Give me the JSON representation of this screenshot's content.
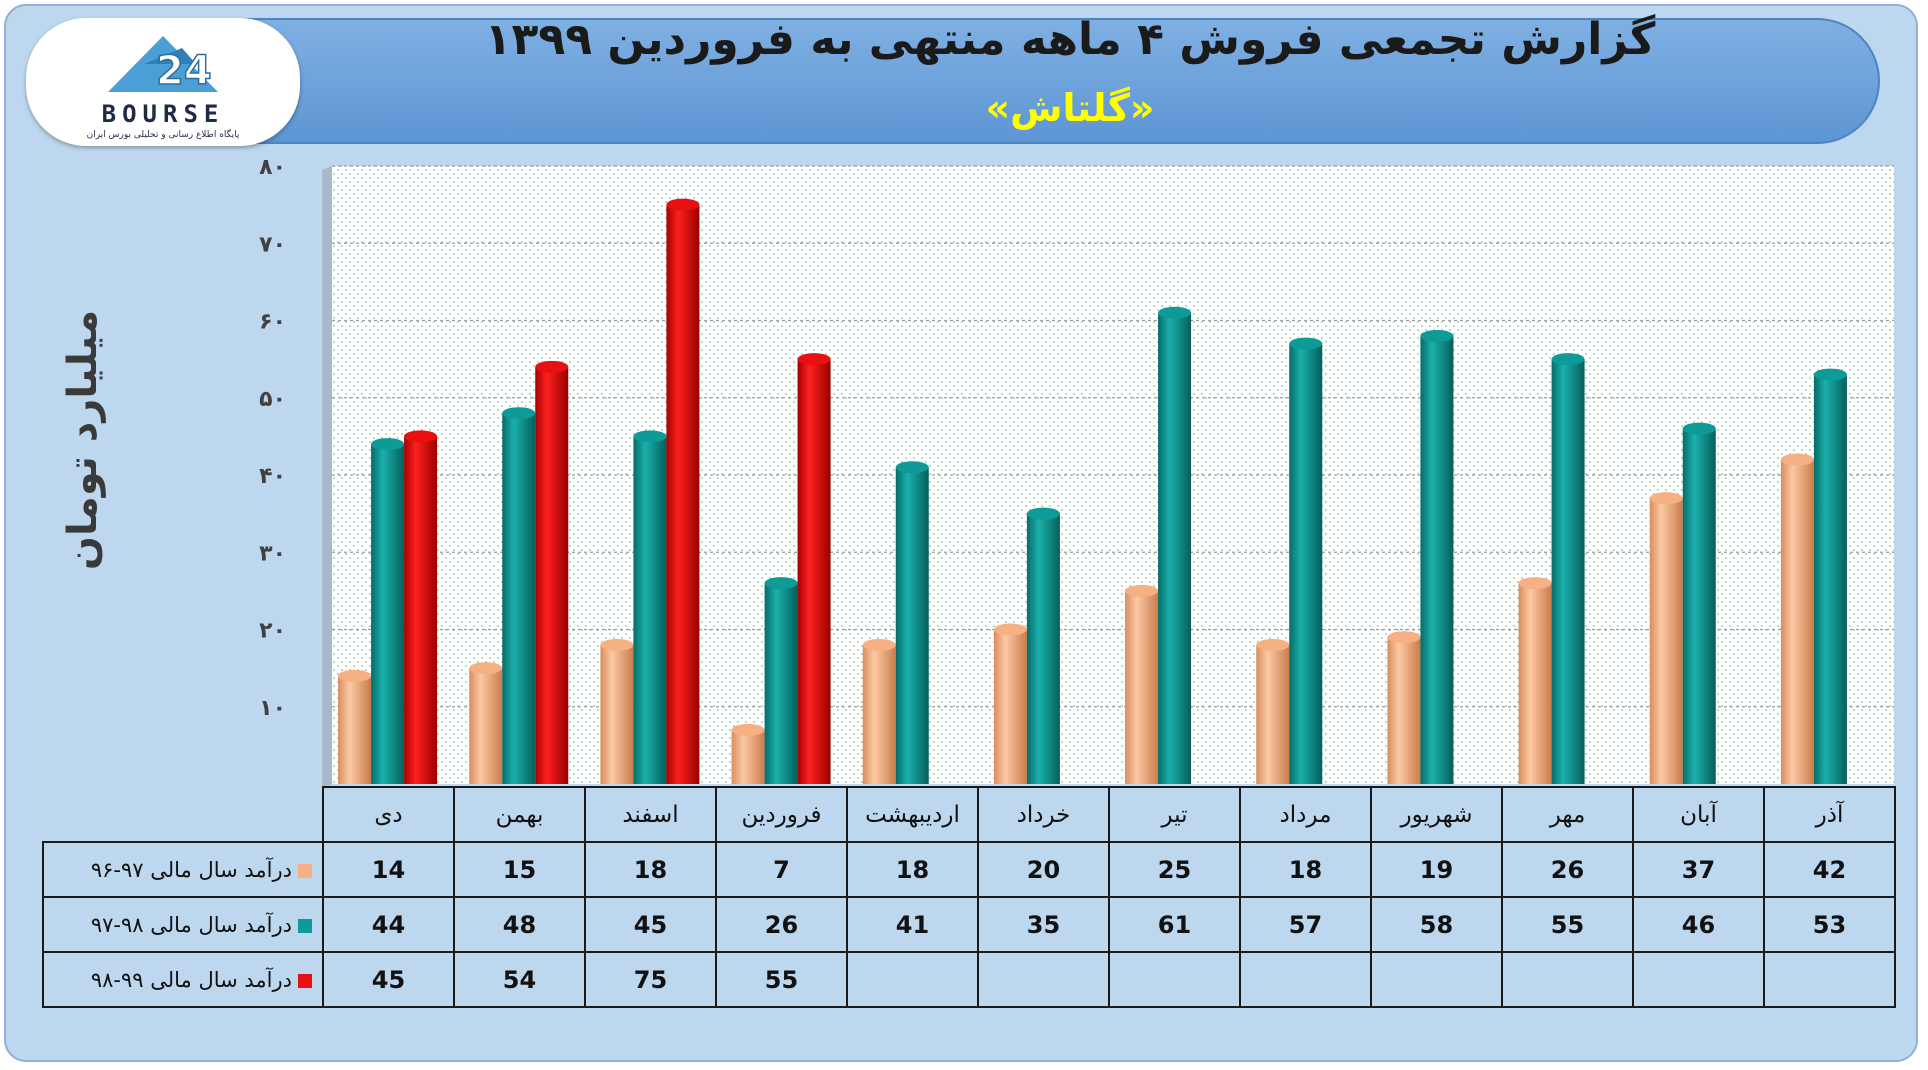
{
  "header": {
    "title": "گزارش تجمعی فروش ۴ ماهه منتهی به فروردین ۱۳۹۹",
    "subtitle": "«گلتاش»",
    "logo_text": "BOURSE",
    "logo_tagline": "پایگاه اطلاع رسانی و تحلیلی بورس ایران"
  },
  "chart_data": {
    "type": "bar",
    "title": "گزارش تجمعی فروش ۴ ماهه منتهی به فروردین ۱۳۹۹",
    "subtitle": "«گلتاش»",
    "ylabel": "میلیارد تومان",
    "ylim": [
      0,
      80
    ],
    "yticks": [
      "۱۰",
      "۲۰",
      "۳۰",
      "۴۰",
      "۵۰",
      "۶۰",
      "۷۰",
      "۸۰"
    ],
    "grid": true,
    "categories": [
      "دی",
      "بهمن",
      "اسفند",
      "فروردین",
      "اردیبهشت",
      "خرداد",
      "تیر",
      "مرداد",
      "شهریور",
      "مهر",
      "آبان",
      "آذر"
    ],
    "series": [
      {
        "name": "درآمد سال مالی ۹۷-۹۶",
        "color": "#f5b183",
        "values": [
          14,
          15,
          18,
          7,
          18,
          20,
          25,
          18,
          19,
          26,
          37,
          42
        ]
      },
      {
        "name": "درآمد سال مالی ۹۸-۹۷",
        "color": "#0e9a96",
        "values": [
          44,
          48,
          45,
          26,
          41,
          35,
          61,
          57,
          58,
          55,
          46,
          53
        ]
      },
      {
        "name": "درآمد سال مالی ۹۹-۹۸",
        "color": "#e81010",
        "values": [
          45,
          54,
          75,
          55,
          null,
          null,
          null,
          null,
          null,
          null,
          null,
          null
        ]
      }
    ]
  },
  "table": {
    "rows": [
      {
        "label": "درآمد سال مالی ۹۷-۹۶",
        "color": "#f5b183",
        "cells": [
          "14",
          "15",
          "18",
          "7",
          "18",
          "20",
          "25",
          "18",
          "19",
          "26",
          "37",
          "42"
        ]
      },
      {
        "label": "درآمد سال مالی ۹۸-۹۷",
        "color": "#0e9a96",
        "cells": [
          "44",
          "48",
          "45",
          "26",
          "41",
          "35",
          "61",
          "57",
          "58",
          "55",
          "46",
          "53"
        ]
      },
      {
        "label": "درآمد سال مالی ۹۹-۹۸",
        "color": "#e81010",
        "cells": [
          "45",
          "54",
          "75",
          "55",
          "",
          "",
          "",
          "",
          "",
          "",
          "",
          ""
        ]
      }
    ]
  }
}
